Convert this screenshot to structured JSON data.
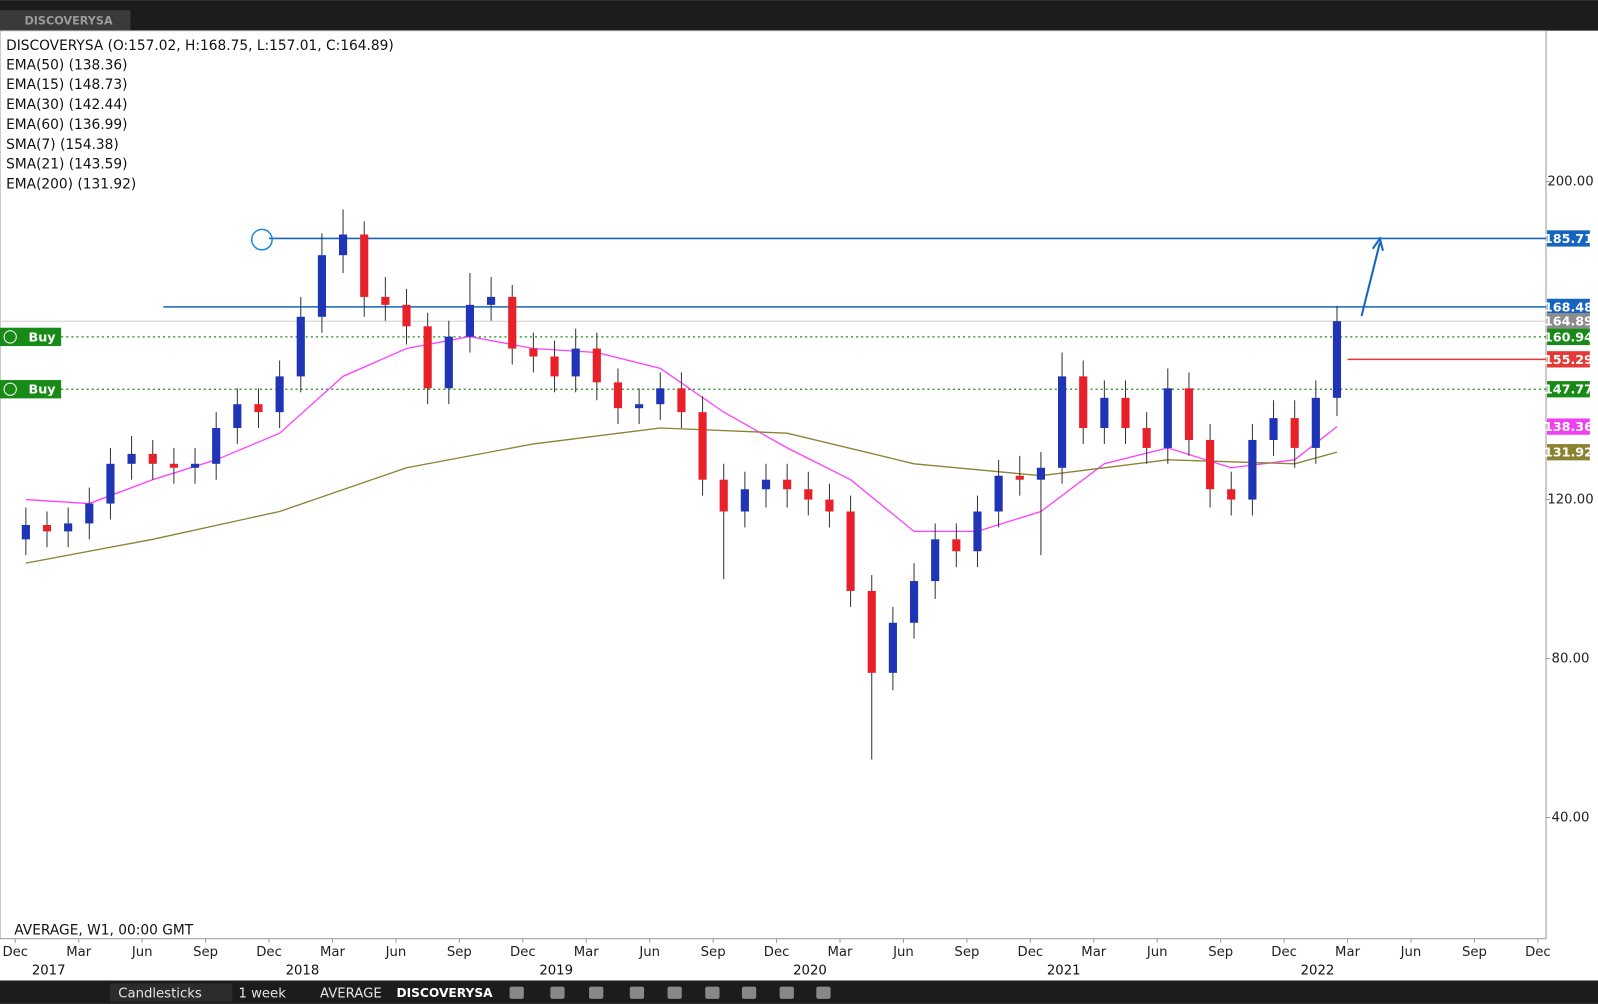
{
  "tab": "DISCOVERYSA",
  "chart_data": {
    "type": "candlestick",
    "title": "DISCOVERYSA (O:157.02, H:168.75, L:157.01, C:164.89)",
    "legend": [
      "EMA(50) (138.36)",
      "EMA(15) (148.73)",
      "EMA(30) (142.44)",
      "EMA(60) (136.99)",
      "SMA(7) (154.38)",
      "SMA(21) (143.59)",
      "EMA(200) (131.92)"
    ],
    "info": "AVERAGE, W1, 00:00 GMT",
    "x": [
      "2016-12",
      "2017-01",
      "2017-02",
      "2017-03",
      "2017-04",
      "2017-05",
      "2017-06",
      "2017-07",
      "2017-08",
      "2017-09",
      "2017-10",
      "2017-11",
      "2017-12",
      "2018-01",
      "2018-02",
      "2018-03",
      "2018-04",
      "2018-05",
      "2018-06",
      "2018-07",
      "2018-08",
      "2018-09",
      "2018-10",
      "2018-11",
      "2018-12",
      "2019-01",
      "2019-02",
      "2019-03",
      "2019-04",
      "2019-05",
      "2019-06",
      "2019-07",
      "2019-08",
      "2019-09",
      "2019-10",
      "2019-11",
      "2019-12",
      "2020-01",
      "2020-02",
      "2020-03",
      "2020-04",
      "2020-05",
      "2020-06",
      "2020-07",
      "2020-08",
      "2020-09",
      "2020-10",
      "2020-11",
      "2020-12",
      "2021-01",
      "2021-02",
      "2021-03",
      "2021-04",
      "2021-05",
      "2021-06",
      "2021-07",
      "2021-08",
      "2021-09",
      "2021-10",
      "2021-11",
      "2021-12",
      "2022-01",
      "2022-02"
    ],
    "open": [
      110,
      113.6,
      112,
      114,
      119,
      129,
      131.5,
      129,
      128,
      129,
      138,
      144,
      142,
      151,
      166,
      181.5,
      186.7,
      171,
      169,
      163.6,
      148,
      161,
      169,
      171,
      158,
      156,
      151,
      158,
      149.5,
      143,
      144,
      148,
      142,
      125,
      117,
      122.6,
      125,
      122.6,
      120,
      117,
      97,
      76.4,
      89,
      99.5,
      110,
      107,
      117,
      126,
      125,
      128,
      151,
      138,
      145.6,
      138,
      133,
      148,
      135,
      122.6,
      120,
      135,
      140.5,
      133,
      145.6
    ],
    "high": [
      118,
      117,
      118,
      123,
      133,
      136,
      135,
      133,
      133,
      142,
      148,
      148,
      155,
      171,
      187,
      193,
      190,
      176,
      173,
      167,
      165,
      177,
      176,
      174,
      162,
      160,
      163,
      162,
      153,
      148,
      152,
      152,
      146,
      129,
      127,
      129,
      129,
      127,
      124,
      121,
      101,
      93,
      104,
      114,
      114,
      121,
      130,
      131,
      132,
      157,
      155,
      150,
      150,
      142,
      153,
      152,
      139,
      127,
      139,
      145,
      145,
      150,
      168.75
    ],
    "low": [
      106,
      108,
      108,
      110,
      115,
      125,
      125,
      124,
      124,
      125,
      134,
      138,
      138,
      147,
      162,
      177,
      166,
      165,
      159,
      144,
      144,
      157,
      165,
      154,
      152,
      147,
      147,
      145,
      139,
      139,
      140,
      138,
      121,
      100,
      113,
      118,
      118,
      116,
      113,
      93,
      54.6,
      72,
      85,
      95,
      103,
      103,
      113,
      121,
      106,
      124,
      134,
      134,
      134,
      129,
      129,
      131,
      118,
      116,
      116,
      131,
      128,
      129,
      141
    ],
    "close": [
      113.6,
      112,
      114,
      119,
      129,
      131.5,
      129,
      128,
      129,
      138,
      144,
      142,
      151,
      166,
      181.5,
      186.7,
      171,
      169,
      163.6,
      148,
      161,
      169,
      171,
      158,
      156,
      151,
      158,
      149.5,
      143,
      144,
      148,
      142,
      125,
      117,
      122.6,
      125,
      122.6,
      120,
      117,
      97,
      76.4,
      89,
      99.5,
      110,
      107,
      117,
      126,
      125,
      128,
      151,
      138,
      145.6,
      138,
      133,
      148,
      135,
      122.6,
      120,
      135,
      140.5,
      133,
      145.6,
      164.89
    ],
    "up_color": "#1f35b5",
    "down_color": "#e8202a",
    "series": [
      {
        "color": "#ff40ff",
        "x": [
          "2016-12",
          "2017-03",
          "2017-06",
          "2017-09",
          "2017-12",
          "2018-03",
          "2018-06",
          "2018-09",
          "2018-12",
          "2019-03",
          "2019-06",
          "2019-09",
          "2019-12",
          "2020-03",
          "2020-06",
          "2020-09",
          "2020-12",
          "2021-03",
          "2021-06",
          "2021-09",
          "2021-12",
          "2022-02"
        ],
        "values": [
          120,
          119,
          125,
          130,
          136.7,
          151,
          158,
          161,
          158,
          157,
          153,
          142,
          133,
          125,
          112,
          112,
          117,
          129,
          133,
          128,
          130,
          138.36
        ]
      },
      {
        "color": "#8b8232",
        "x": [
          "2016-12",
          "2017-06",
          "2017-12",
          "2018-06",
          "2018-12",
          "2019-06",
          "2019-12",
          "2020-06",
          "2020-12",
          "2021-06",
          "2021-12",
          "2022-02"
        ],
        "values": [
          104,
          110,
          117,
          128,
          134,
          138,
          136.7,
          129,
          126,
          130,
          129,
          131.92
        ]
      }
    ],
    "levels": [
      {
        "value": 185.71,
        "color": "#1565c0",
        "line": "solid",
        "from": "2017-12"
      },
      {
        "value": 168.48,
        "color": "#1565c0",
        "line": "solid",
        "from": "2017-07"
      },
      {
        "value": 164.89,
        "color": "#8c8c8c",
        "line": "thin",
        "from": "2016-12"
      },
      {
        "value": 160.94,
        "color": "#178a17",
        "line": "dotted",
        "from": "2016-12",
        "tag": "Buy"
      },
      {
        "value": 155.29,
        "color": "#e53935",
        "line": "solid",
        "from": "2022-03"
      },
      {
        "value": 147.77,
        "color": "#178a17",
        "line": "dotted",
        "from": "2016-12",
        "tag": "Buy"
      },
      {
        "value": 138.36,
        "color": "#f040f0",
        "line": "none"
      },
      {
        "value": 131.92,
        "color": "#8b8232",
        "line": "none"
      }
    ],
    "ylim": [
      9.5,
      238
    ],
    "yticks": [
      {
        "value": 40,
        "label": "40.00"
      },
      {
        "value": 80,
        "label": "80.00"
      },
      {
        "value": 120,
        "label": "120.00"
      },
      {
        "value": 200,
        "label": "200.00"
      }
    ],
    "xlim": [
      "2016-12",
      "2022-12"
    ],
    "xticks": [
      {
        "value": "2016-12",
        "label": "Dec"
      },
      {
        "value": "2017-03",
        "label": "Mar"
      },
      {
        "value": "2017-06",
        "label": "Jun"
      },
      {
        "value": "2017-09",
        "label": "Sep"
      },
      {
        "value": "2017-12",
        "label": "Dec"
      },
      {
        "value": "2018-03",
        "label": "Mar"
      },
      {
        "value": "2018-06",
        "label": "Jun"
      },
      {
        "value": "2018-09",
        "label": "Sep"
      },
      {
        "value": "2018-12",
        "label": "Dec"
      },
      {
        "value": "2019-03",
        "label": "Mar"
      },
      {
        "value": "2019-06",
        "label": "Jun"
      },
      {
        "value": "2019-09",
        "label": "Sep"
      },
      {
        "value": "2019-12",
        "label": "Dec"
      },
      {
        "value": "2020-03",
        "label": "Mar"
      },
      {
        "value": "2020-06",
        "label": "Jun"
      },
      {
        "value": "2020-09",
        "label": "Sep"
      },
      {
        "value": "2020-12",
        "label": "Dec"
      },
      {
        "value": "2021-03",
        "label": "Mar"
      },
      {
        "value": "2021-06",
        "label": "Jun"
      },
      {
        "value": "2021-09",
        "label": "Sep"
      },
      {
        "value": "2021-12",
        "label": "Dec"
      },
      {
        "value": "2022-03",
        "label": "Mar"
      },
      {
        "value": "2022-06",
        "label": "Jun"
      },
      {
        "value": "2022-09",
        "label": "Sep"
      },
      {
        "value": "2022-12",
        "label": "Dec"
      }
    ],
    "year_ticks": [
      {
        "value": "2017-01",
        "label": "2017"
      },
      {
        "value": "2018-01",
        "label": "2018"
      },
      {
        "value": "2019-01",
        "label": "2019"
      },
      {
        "value": "2020-01",
        "label": "2020"
      },
      {
        "value": "2021-01",
        "label": "2021"
      },
      {
        "value": "2022-01",
        "label": "2022"
      }
    ]
  },
  "toolbar": {
    "chart_type": "Candlesticks",
    "period": "1 week",
    "source": "AVERAGE",
    "symbol": "DISCOVERYSA"
  }
}
